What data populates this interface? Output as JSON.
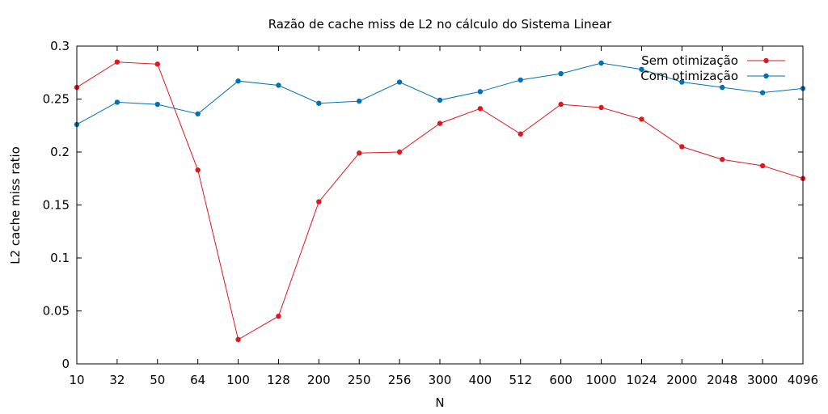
{
  "chart_data": {
    "type": "line",
    "title": "Razão de cache miss de L2 no cálculo do Sistema Linear",
    "xlabel": "N",
    "ylabel": "L2 cache miss ratio",
    "categories": [
      "10",
      "32",
      "50",
      "64",
      "100",
      "128",
      "200",
      "250",
      "256",
      "300",
      "400",
      "512",
      "600",
      "1000",
      "1024",
      "2000",
      "2048",
      "3000",
      "4096"
    ],
    "ylim": [
      0,
      0.3
    ],
    "yticks": [
      "0",
      "0.05",
      "0.1",
      "0.15",
      "0.2",
      "0.25",
      "0.3"
    ],
    "grid": false,
    "legend_position": "top-right",
    "series": [
      {
        "name": "Sem otimização",
        "color": "#dd181f",
        "values": [
          0.261,
          0.285,
          0.283,
          0.183,
          0.023,
          0.045,
          0.153,
          0.199,
          0.2,
          0.227,
          0.241,
          0.217,
          0.245,
          0.242,
          0.231,
          0.205,
          0.193,
          0.187,
          0.175
        ]
      },
      {
        "name": "Com otimização",
        "color": "#0072b2",
        "values": [
          0.226,
          0.247,
          0.245,
          0.236,
          0.267,
          0.263,
          0.246,
          0.248,
          0.266,
          0.249,
          0.257,
          0.268,
          0.274,
          0.284,
          0.278,
          0.266,
          0.261,
          0.256,
          0.26
        ]
      }
    ]
  }
}
